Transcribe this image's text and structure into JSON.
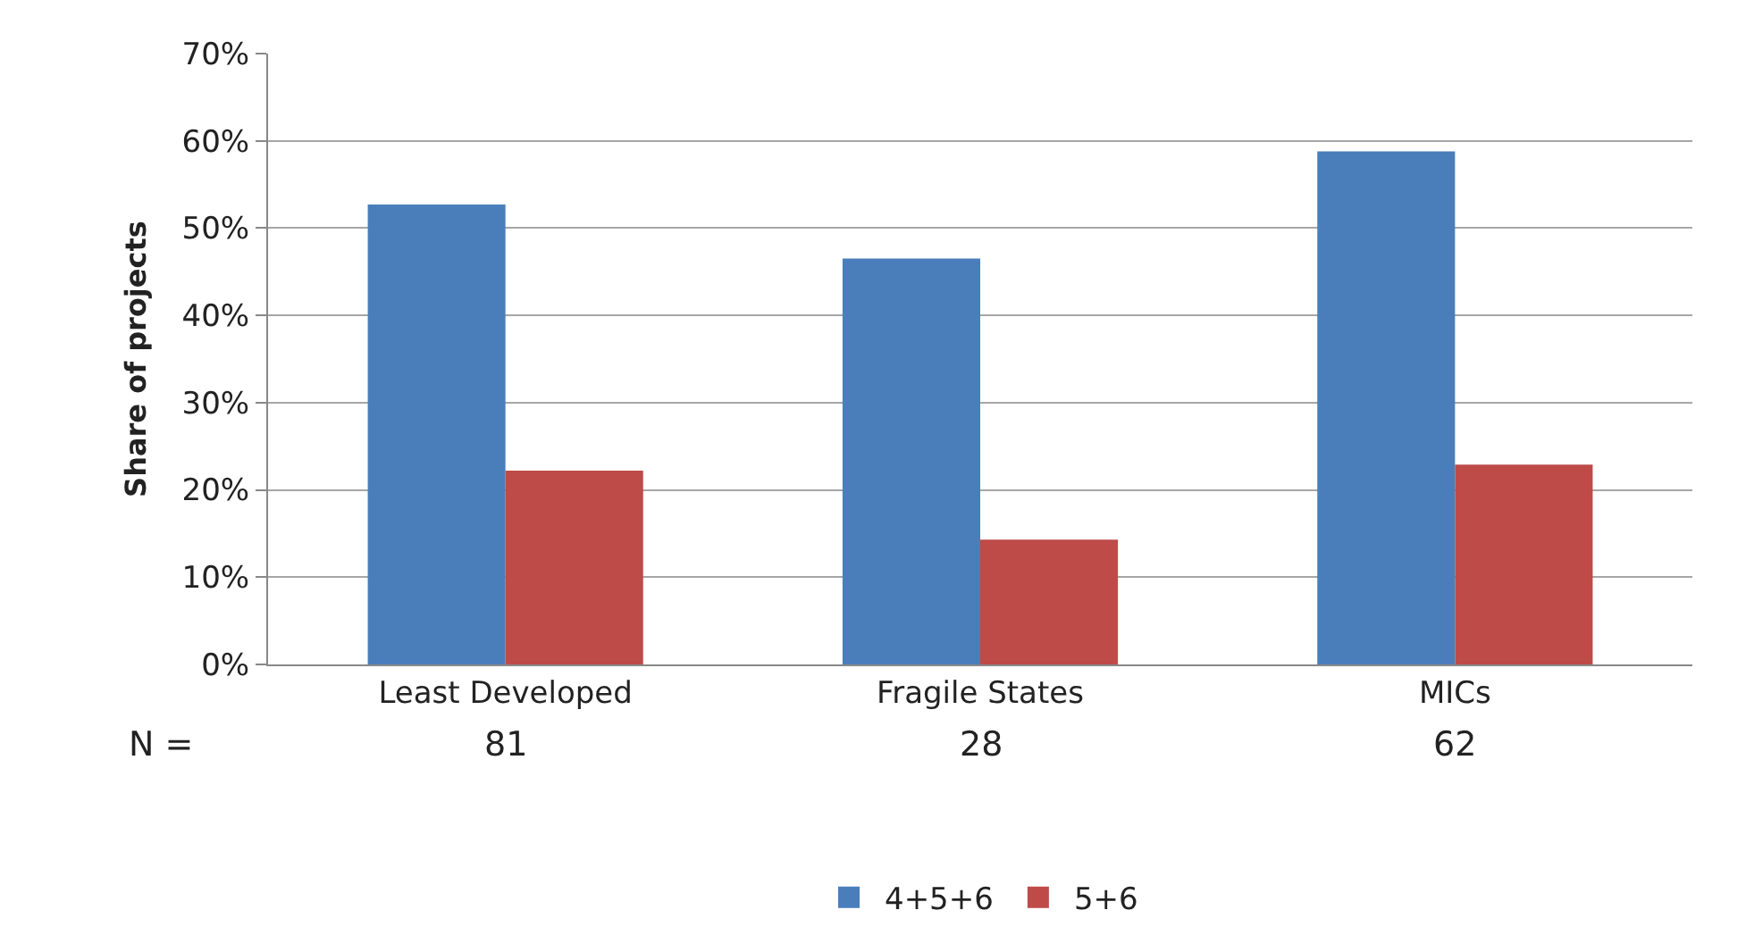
{
  "chart_data": {
    "type": "bar",
    "ylabel": "Share of projects",
    "categories": [
      "Least Developed",
      "Fragile States",
      "MICs"
    ],
    "series": [
      {
        "name": "4+5+6",
        "color": "#4a7ebb",
        "values": [
          52.7,
          46.5,
          58.8
        ]
      },
      {
        "name": "5+6",
        "color": "#be4b48",
        "values": [
          22.2,
          14.3,
          22.9
        ]
      }
    ],
    "ylim": [
      0,
      70
    ],
    "yticks": [
      {
        "value": 0,
        "label": "0%"
      },
      {
        "value": 10,
        "label": "10%"
      },
      {
        "value": 20,
        "label": "20%"
      },
      {
        "value": 30,
        "label": "30%"
      },
      {
        "value": 40,
        "label": "40%"
      },
      {
        "value": 50,
        "label": "50%"
      },
      {
        "value": 60,
        "label": "60%"
      },
      {
        "value": 70,
        "label": "70%"
      }
    ],
    "annotations": [
      "N =",
      "81",
      "28",
      "62"
    ],
    "grid": "y",
    "legend": "bottom"
  }
}
